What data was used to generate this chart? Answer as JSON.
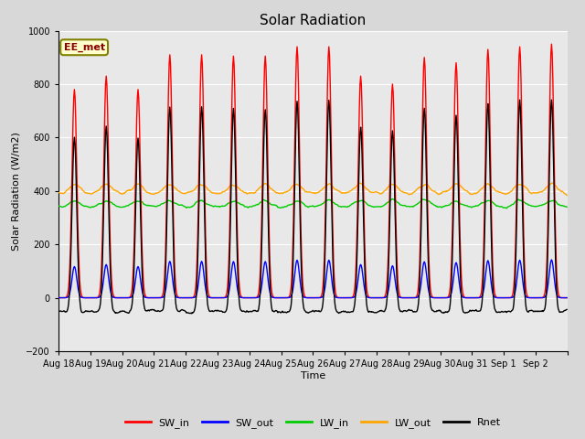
{
  "title": "Solar Radiation",
  "ylabel": "Solar Radiation (W/m2)",
  "xlabel": "Time",
  "ylim": [
    -200,
    1000
  ],
  "annotation": "EE_met",
  "legend": [
    "SW_in",
    "SW_out",
    "LW_in",
    "LW_out",
    "Rnet"
  ],
  "colors": {
    "SW_in": "#ff0000",
    "SW_out": "#0000ff",
    "LW_in": "#00cc00",
    "LW_out": "#ffa500",
    "Rnet": "#000000"
  },
  "fig_facecolor": "#d8d8d8",
  "ax_facecolor": "#e8e8e8",
  "xtick_labels": [
    "Aug 18",
    "Aug 19",
    "Aug 20",
    "Aug 21",
    "Aug 22",
    "Aug 23",
    "Aug 24",
    "Aug 25",
    "Aug 26",
    "Aug 27",
    "Aug 28",
    "Aug 29",
    "Aug 30",
    "Aug 31",
    "Sep 1",
    "Sep 2"
  ],
  "num_days": 16,
  "dt_hours": 0.5,
  "sw_peaks": [
    780,
    830,
    780,
    910,
    910,
    905,
    905,
    940,
    940,
    830,
    800,
    900,
    880,
    930,
    940,
    950
  ],
  "lw_in_base": 340,
  "lw_out_base": 390,
  "lw_amplitude": 30,
  "night_rnet": -60
}
